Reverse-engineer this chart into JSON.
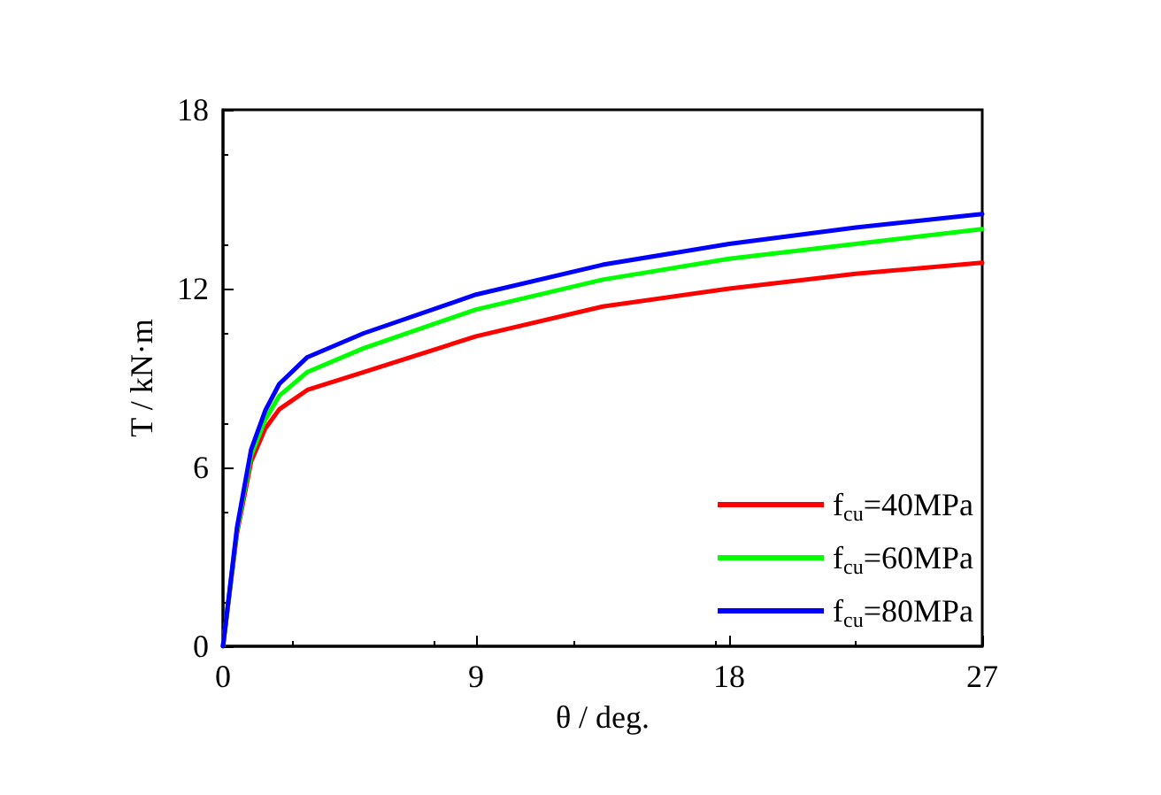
{
  "chart_data": {
    "type": "line",
    "xlabel": "θ / deg.",
    "ylabel": "T / kN·m",
    "x": [
      0,
      0.5,
      1,
      1.5,
      2,
      3,
      5,
      9,
      13.5,
      18,
      22.5,
      27
    ],
    "series": [
      {
        "name": "f$_{cu}$=40MPa",
        "color": "#ff0000",
        "values": [
          0,
          3.8,
          6.2,
          7.3,
          7.95,
          8.6,
          9.2,
          10.4,
          11.4,
          12.0,
          12.5,
          12.87
        ]
      },
      {
        "name": "f$_{cu}$=60MPa",
        "color": "#00ff00",
        "values": [
          0,
          3.9,
          6.4,
          7.6,
          8.4,
          9.2,
          10.0,
          11.3,
          12.3,
          13.0,
          13.5,
          14.0
        ]
      },
      {
        "name": "f$_{cu}$=80MPa",
        "color": "#0000ff",
        "values": [
          0,
          4.0,
          6.6,
          7.9,
          8.8,
          9.7,
          10.5,
          11.8,
          12.8,
          13.5,
          14.05,
          14.5
        ]
      }
    ],
    "xlim": [
      0,
      27
    ],
    "xticks": [
      0,
      9,
      18,
      27
    ],
    "ylim": [
      0,
      18
    ],
    "yticks": [
      0,
      6,
      12,
      18
    ],
    "grid": false,
    "legend": "bottom right",
    "marker": "none",
    "line_style": "solid"
  }
}
